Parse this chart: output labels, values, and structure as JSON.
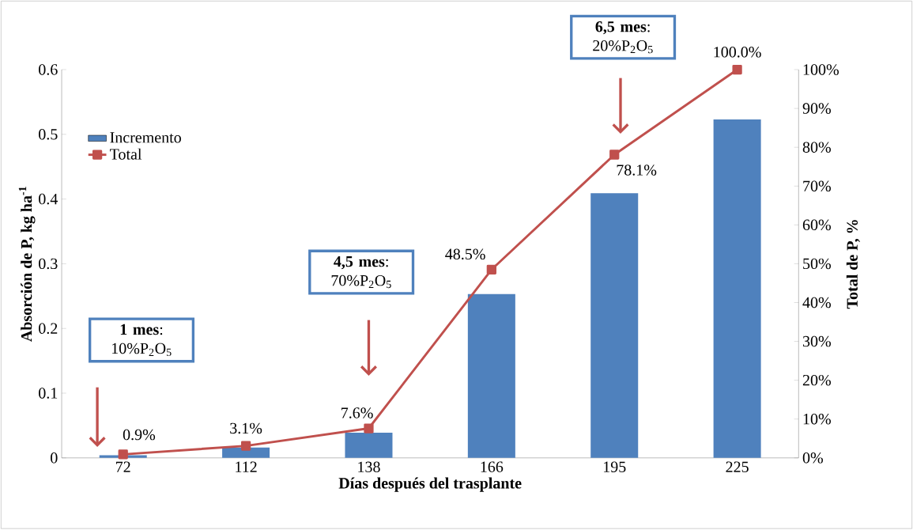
{
  "chart_data": {
    "type": "bar",
    "xlabel": "Días después del trasplante",
    "ylabel": "Absorción de P, kg ha$^{-1}$",
    "y2label": "Total de P, %",
    "categories": [
      "72",
      "112",
      "138",
      "166",
      "195",
      "225"
    ],
    "series": [
      {
        "name": "Incremento",
        "color": "#4f81bd",
        "values": [
          0.004,
          0.016,
          0.039,
          0.253,
          0.409,
          0.523
        ]
      },
      {
        "name": "Total",
        "type": "line",
        "axis": "y2",
        "color": "#c0504d",
        "marker": "square",
        "values": [
          0.9,
          3.1,
          7.6,
          48.5,
          78.1,
          100.0
        ],
        "value_labels": [
          "0.9%",
          "3.1%",
          "7.6%",
          "48.5%",
          "78.1%",
          "100.0%"
        ]
      }
    ],
    "ylim": [
      0,
      0.6
    ],
    "yticks": [
      0,
      0.1,
      0.2,
      0.3,
      0.4,
      0.5,
      0.6
    ],
    "y2lim": [
      0,
      100
    ],
    "y2ticks": [
      {
        "value": 0,
        "label": "0%"
      },
      {
        "value": 10,
        "label": "10%"
      },
      {
        "value": 20,
        "label": "20%"
      },
      {
        "value": 30,
        "label": "30%"
      },
      {
        "value": 40,
        "label": "40%"
      },
      {
        "value": 50,
        "label": "50%"
      },
      {
        "value": 60,
        "label": "60%"
      },
      {
        "value": 70,
        "label": "70%"
      },
      {
        "value": 80,
        "label": "80%"
      },
      {
        "value": 90,
        "label": "90%"
      },
      {
        "value": 100,
        "label": "100%"
      }
    ],
    "legend": "top left",
    "annotations": [
      "**1 mes**: 10%P$_{2}$O$_{5}$",
      "**4,5 mes**: 70%P$_{2}$O$_{5}$",
      "**6,5 mes**: 20%P$_{2}$O$_{5}$"
    ]
  }
}
